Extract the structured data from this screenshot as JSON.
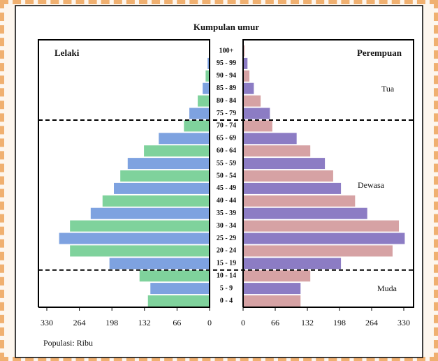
{
  "chart_data": {
    "type": "pyramid",
    "title": "Kumpulan umur",
    "categories": [
      "0 - 4",
      "5 - 9",
      "10 - 14",
      "15 - 19",
      "20 - 24",
      "25 - 29",
      "30 - 34",
      "35 - 39",
      "40 - 44",
      "45 - 49",
      "50 - 54",
      "55 - 59",
      "60 - 64",
      "65 - 69",
      "70 - 74",
      "75 - 79",
      "80 - 84",
      "85 - 89",
      "90 - 94",
      "95 - 99",
      "100+"
    ],
    "series": [
      {
        "name": "Lelaki",
        "colors": [
          "#7fd29c",
          "#7ea2e0"
        ],
        "values": [
          125,
          120,
          142,
          203,
          283,
          305,
          283,
          241,
          217,
          194,
          181,
          166,
          133,
          103,
          52,
          41,
          24,
          14,
          8,
          4,
          1
        ]
      },
      {
        "name": "Perempuan",
        "colors": [
          "#d6a2a4",
          "#8c7cc4"
        ],
        "values": [
          118,
          118,
          138,
          201,
          307,
          332,
          320,
          255,
          230,
          201,
          185,
          168,
          138,
          110,
          60,
          55,
          36,
          22,
          13,
          9,
          3
        ]
      }
    ],
    "annotations": [
      "Muda",
      "Dewasa",
      "Tua"
    ],
    "xlabel": "Populasi: Ribu",
    "xlim": [
      0,
      330
    ],
    "xticks": [
      0,
      66,
      132,
      198,
      264,
      330
    ]
  }
}
